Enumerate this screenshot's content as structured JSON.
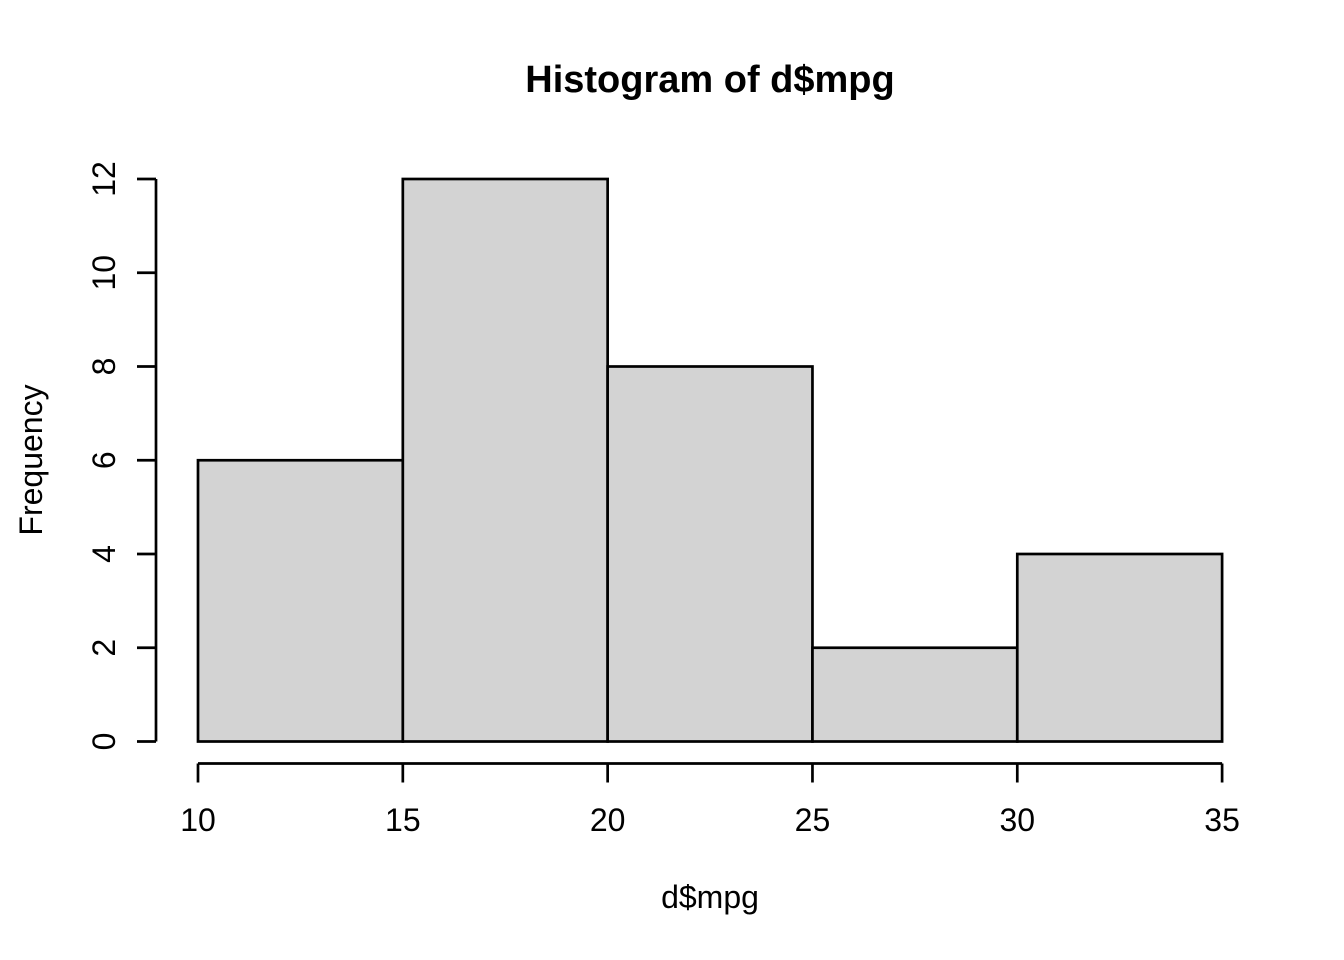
{
  "chart_data": {
    "type": "bar",
    "chart_kind": "histogram",
    "title": "Histogram of d$mpg",
    "xlabel": "d$mpg",
    "ylabel": "Frequency",
    "bin_edges": [
      10,
      15,
      20,
      25,
      30,
      35
    ],
    "counts": [
      6,
      12,
      8,
      2,
      4
    ],
    "x_ticks": [
      10,
      15,
      20,
      25,
      30,
      35
    ],
    "y_ticks": [
      0,
      2,
      4,
      6,
      8,
      10,
      12
    ],
    "xlim": [
      10,
      35
    ],
    "ylim": [
      0,
      12
    ],
    "grid": false,
    "legend": false,
    "bar_fill_color": "#d3d3d3",
    "bar_border_color": "#000000",
    "axis_color": "#000000",
    "text_color": "#000000",
    "background_color": "#ffffff"
  }
}
